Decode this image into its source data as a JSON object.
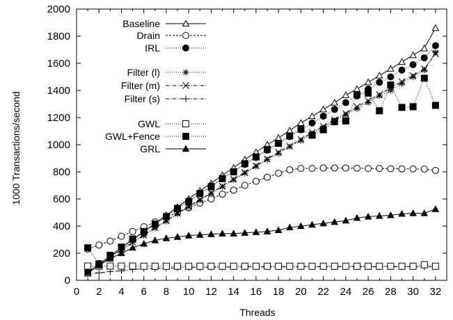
{
  "chart_data": {
    "type": "line",
    "xlabel": "Threads",
    "ylabel": "1000 Transactions/second",
    "xlim": [
      0,
      33
    ],
    "ylim": [
      0,
      2000
    ],
    "xticks": [
      "0",
      "2",
      "4",
      "6",
      "8",
      "10",
      "12",
      "14",
      "16",
      "18",
      "20",
      "22",
      "24",
      "26",
      "28",
      "30",
      "32"
    ],
    "yticks": [
      "0",
      "200",
      "400",
      "600",
      "800",
      "1000",
      "1200",
      "1400",
      "1600",
      "1800",
      "2000"
    ],
    "grid": false,
    "legend_position": "top-left",
    "x": [
      1,
      2,
      3,
      4,
      5,
      6,
      7,
      8,
      9,
      10,
      11,
      12,
      13,
      14,
      15,
      16,
      17,
      18,
      19,
      20,
      21,
      22,
      23,
      24,
      25,
      26,
      27,
      28,
      29,
      30,
      31,
      32
    ],
    "series": [
      {
        "name": "Baseline",
        "marker": "triangle-open",
        "dash": "solid",
        "values": [
          50,
          115,
          175,
          240,
          300,
          360,
          420,
          480,
          540,
          600,
          660,
          715,
          775,
          830,
          890,
          945,
          1000,
          1050,
          1105,
          1160,
          1210,
          1260,
          1310,
          1365,
          1410,
          1460,
          1510,
          1560,
          1610,
          1660,
          1710,
          1860
        ]
      },
      {
        "name": "Drain",
        "marker": "circle-open",
        "dash": "dashed",
        "values": [
          230,
          260,
          290,
          325,
          360,
          395,
          430,
          465,
          500,
          535,
          570,
          600,
          635,
          665,
          700,
          730,
          760,
          790,
          815,
          825,
          825,
          828,
          828,
          828,
          826,
          825,
          825,
          823,
          822,
          822,
          820,
          810
        ]
      },
      {
        "name": "IRL",
        "marker": "circle-filled",
        "dash": "dotted",
        "values": [
          65,
          125,
          185,
          240,
          300,
          355,
          415,
          470,
          530,
          585,
          640,
          695,
          750,
          800,
          855,
          905,
          960,
          1010,
          1060,
          1110,
          1160,
          1210,
          1260,
          1310,
          1360,
          1410,
          1460,
          1500,
          1550,
          1590,
          1640,
          1730
        ]
      },
      {
        "name": "Filter (l)",
        "marker": "star",
        "dash": "dotted",
        "values": [
          55,
          115,
          170,
          225,
          280,
          330,
          385,
          435,
          490,
          540,
          590,
          640,
          690,
          740,
          790,
          840,
          890,
          935,
          985,
          1030,
          1080,
          1125,
          1175,
          1220,
          1265,
          1310,
          1360,
          1400,
          1450,
          1500,
          1550,
          1680
        ]
      },
      {
        "name": "Filter (m)",
        "marker": "cross",
        "dash": "dashdot",
        "values": [
          55,
          115,
          170,
          225,
          280,
          335,
          390,
          440,
          495,
          545,
          595,
          645,
          695,
          745,
          795,
          845,
          895,
          945,
          990,
          1040,
          1090,
          1135,
          1185,
          1230,
          1280,
          1325,
          1370,
          1420,
          1465,
          1510,
          1560,
          1670
        ]
      },
      {
        "name": "Filter (s)",
        "marker": "plus",
        "dash": "dashdot",
        "values": [
          45,
          55,
          65,
          70,
          80,
          85,
          88,
          90,
          92,
          94,
          95,
          96,
          97,
          98,
          98,
          99,
          99,
          99,
          99,
          100,
          100,
          100,
          100,
          100,
          100,
          100,
          100,
          100,
          100,
          100,
          100,
          100
        ]
      },
      {
        "name": "GWL",
        "marker": "square-open",
        "dash": "dotted",
        "values": [
          105,
          105,
          105,
          105,
          105,
          104,
          104,
          104,
          104,
          104,
          104,
          104,
          104,
          104,
          104,
          104,
          104,
          104,
          104,
          104,
          104,
          104,
          104,
          104,
          104,
          104,
          104,
          104,
          104,
          104,
          115,
          104
        ]
      },
      {
        "name": "GWL+Fence",
        "marker": "square-filled",
        "dash": "dotted",
        "values": [
          240,
          120,
          185,
          245,
          305,
          360,
          415,
          470,
          530,
          580,
          640,
          690,
          750,
          800,
          860,
          910,
          965,
          1010,
          1065,
          1115,
          1070,
          1110,
          1170,
          1175,
          1370,
          1380,
          1250,
          1440,
          1275,
          1280,
          1490,
          1290
        ]
      },
      {
        "name": "GRL",
        "marker": "triangle-filled",
        "dash": "solid",
        "values": [
          60,
          110,
          160,
          200,
          240,
          270,
          295,
          310,
          320,
          330,
          335,
          340,
          345,
          345,
          350,
          355,
          360,
          370,
          390,
          400,
          410,
          420,
          430,
          440,
          460,
          470,
          475,
          480,
          490,
          495,
          495,
          525
        ]
      }
    ]
  },
  "legend_groups": [
    [
      "Baseline",
      "Drain",
      "IRL"
    ],
    [
      "Filter (l)",
      "Filter (m)",
      "Filter (s)"
    ],
    [
      "GWL",
      "GWL+Fence",
      "GRL"
    ]
  ]
}
